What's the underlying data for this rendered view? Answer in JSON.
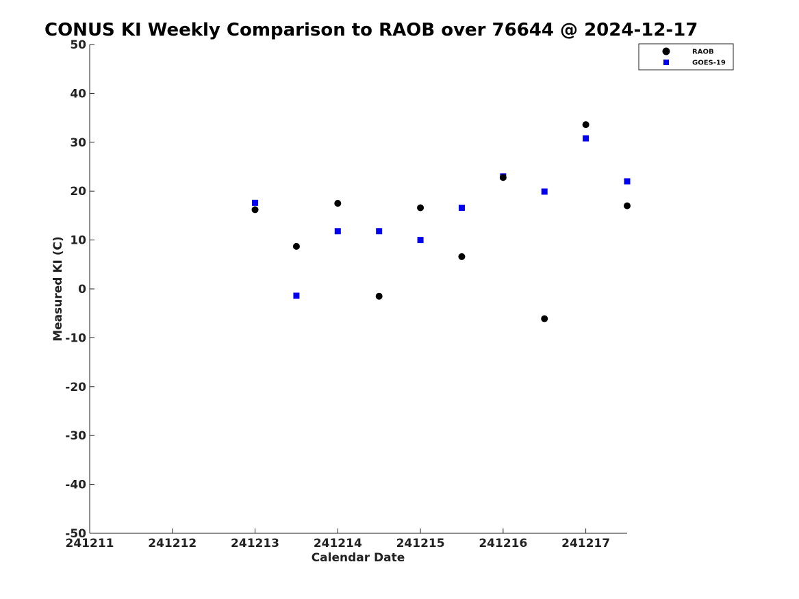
{
  "chart_data": {
    "type": "scatter",
    "title": "CONUS KI Weekly Comparison to RAOB over 76644 @ 2024-12-17",
    "xlabel": "Calendar Date",
    "ylabel": "Measured KI (C)",
    "xlim": [
      0,
      6.5
    ],
    "ylim": [
      -50,
      50
    ],
    "x_tick_values": [
      0,
      1,
      2,
      3,
      4,
      5,
      6
    ],
    "x_tick_labels": [
      "241211",
      "241212",
      "241213",
      "241214",
      "241215",
      "241216",
      "241217"
    ],
    "y_ticks": [
      50,
      40,
      30,
      20,
      10,
      0,
      -10,
      -20,
      -30,
      -40,
      -50
    ],
    "grid": false,
    "legend_position": "top-right",
    "series": [
      {
        "name": "RAOB",
        "marker": "circle",
        "color": "#000000",
        "x": [
          2.0,
          2.5,
          3.0,
          3.5,
          4.0,
          4.5,
          5.0,
          5.5,
          6.0,
          6.5
        ],
        "y": [
          16.2,
          8.7,
          17.5,
          -1.5,
          16.6,
          6.6,
          22.8,
          -6.1,
          33.6,
          17.0
        ]
      },
      {
        "name": "GOES-19",
        "marker": "square",
        "color": "#0000ee",
        "x": [
          2.0,
          2.5,
          3.0,
          3.5,
          4.0,
          4.5,
          5.0,
          5.5,
          6.0,
          6.5
        ],
        "y": [
          17.6,
          -1.4,
          11.8,
          11.8,
          10.0,
          16.6,
          23.0,
          19.9,
          30.8,
          22.0
        ]
      }
    ]
  }
}
